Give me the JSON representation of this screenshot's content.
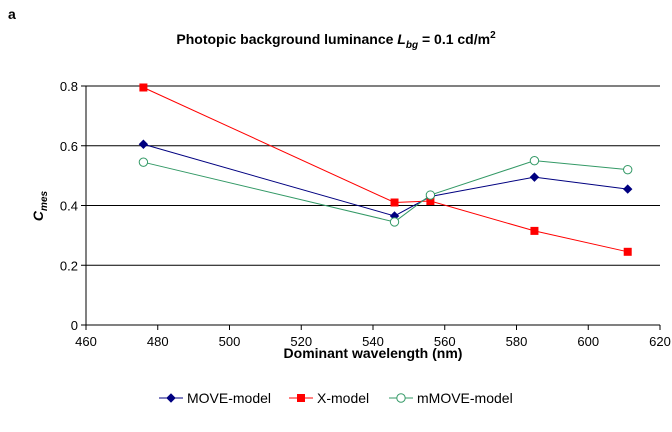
{
  "panel_label": "a",
  "chart_data": {
    "type": "line",
    "title": {
      "prefix": "Photopic background luminance ",
      "symbol": "L",
      "symbol_subscript": "bg",
      "suffix": " = 0.1 cd/m",
      "suffix_superscript": "2"
    },
    "xlabel": "Dominant wavelength (nm)",
    "ylabel": {
      "symbol": "C",
      "subscript": "mes"
    },
    "xlim": [
      460,
      620
    ],
    "ylim": [
      0,
      0.8
    ],
    "xticks": [
      460,
      480,
      500,
      520,
      540,
      560,
      580,
      600,
      620
    ],
    "yticks": [
      0,
      0.2,
      0.4,
      0.6,
      0.8
    ],
    "xtick_labels": [
      "460",
      "480",
      "500",
      "520",
      "540",
      "560",
      "580",
      "600",
      "620"
    ],
    "ytick_labels": [
      "0",
      "0.2",
      "0.4",
      "0.6",
      "0.8"
    ],
    "grid": "horizontal",
    "legend_position": "bottom",
    "series": [
      {
        "name": "MOVE-model",
        "color": "#000080",
        "marker": "diamond",
        "x": [
          476,
          546,
          556,
          585,
          611
        ],
        "y": [
          0.605,
          0.365,
          0.43,
          0.495,
          0.455
        ]
      },
      {
        "name": "X-model",
        "color": "#ff0000",
        "marker": "square",
        "x": [
          476,
          546,
          556,
          585,
          611
        ],
        "y": [
          0.795,
          0.41,
          0.415,
          0.315,
          0.245
        ]
      },
      {
        "name": "mMOVE-model",
        "color": "#339966",
        "marker": "open-circle",
        "x": [
          476,
          546,
          556,
          585,
          611
        ],
        "y": [
          0.545,
          0.345,
          0.435,
          0.55,
          0.52
        ]
      }
    ]
  }
}
